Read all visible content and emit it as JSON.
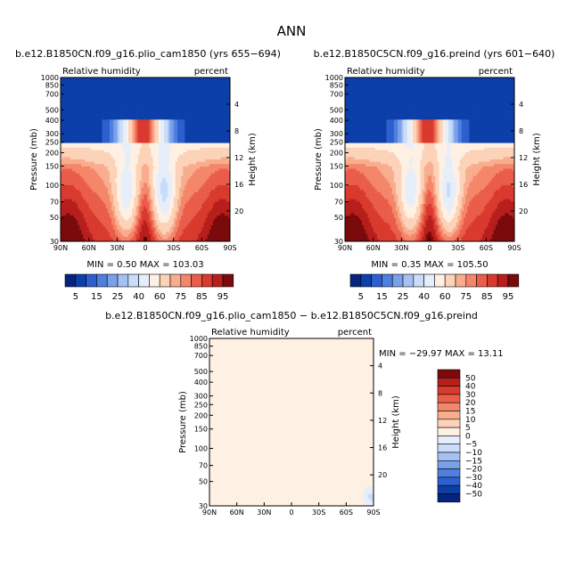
{
  "page_title": "ANN",
  "shading": {
    "levels": [
      5,
      10,
      15,
      20,
      25,
      30,
      40,
      50,
      60,
      70,
      75,
      80,
      85,
      90,
      95
    ],
    "colors": [
      "#06247f",
      "#0d3fa9",
      "#2d5fce",
      "#4f7fe0",
      "#7ba0ea",
      "#a5c0f1",
      "#c9dcf8",
      "#e6eefb",
      "#fff0e4",
      "#fcd2b8",
      "#f8ae8e",
      "#f4866a",
      "#ea5d4a",
      "#d93a2e",
      "#b71e1c",
      "#7a0a0c"
    ],
    "label_values": [
      "5",
      "15",
      "25",
      "40",
      "60",
      "75",
      "85",
      "95"
    ],
    "diff_levels": [
      -50,
      -40,
      -30,
      -20,
      -15,
      -10,
      -5,
      0,
      5,
      10,
      15,
      20,
      30,
      40,
      50
    ],
    "diff_label_values": [
      "50",
      "40",
      "30",
      "20",
      "15",
      "10",
      "5",
      "0",
      "−5",
      "−10",
      "−15",
      "−20",
      "−30",
      "−40",
      "−50"
    ]
  },
  "common": {
    "field_label": "Relative humidity",
    "units_label": "percent",
    "ylabel_left": "Pressure (mb)",
    "ylabel_right": "Height (km)",
    "xtick_labels": [
      "90N",
      "60N",
      "30N",
      "0",
      "30S",
      "60S",
      "90S"
    ],
    "pressure_ticks": [
      "30",
      "50",
      "70",
      "100",
      "150",
      "200",
      "250",
      "300",
      "400",
      "500",
      "700",
      "850",
      "1000"
    ],
    "left_ticks_shown": [
      "30",
      "50",
      "70",
      "100",
      "150",
      "200",
      "250",
      "300",
      "400",
      "500",
      "700",
      "850",
      "1000"
    ],
    "height_ticks": [
      "20",
      "16",
      "12",
      "8",
      "4"
    ]
  },
  "panels": {
    "top_left": {
      "title": "b.e12.B1850CN.f09_g16.plio_cam1850 (yrs 655−694)",
      "stats": "MIN =    0.50   MAX = 103.03"
    },
    "top_right": {
      "title": "b.e12.B1850C5CN.f09_g16.preind (yrs 601−640)",
      "stats": "MIN =    0.35   MAX = 105.50"
    },
    "bottom": {
      "title": "b.e12.B1850CN.f09_g16.plio_cam1850 − b.e12.B1850C5CN.f09_g16.preind",
      "stats": "MIN = −29.97   MAX =   13.11"
    }
  },
  "chart_data": [
    {
      "type": "heatmap",
      "title": "b.e12.B1850CN.f09_g16.plio_cam1850 (yrs 655−694)",
      "variable": "Relative humidity",
      "units": "percent",
      "xlabel": "",
      "ylabel": "Pressure (mb)",
      "ylabel_right": "Height (km)",
      "x": [
        "90N",
        "60N",
        "30N",
        "0",
        "30S",
        "60S",
        "90S"
      ],
      "y_pressure_mb": [
        30,
        50,
        70,
        100,
        150,
        200,
        250,
        300,
        400,
        500,
        700,
        850,
        1000
      ],
      "ylim": [
        1000,
        30
      ],
      "min": 0.5,
      "max": 103.03,
      "contour_levels": [
        5,
        10,
        15,
        20,
        25,
        30,
        40,
        50,
        60,
        70,
        75,
        80,
        85,
        90,
        95
      ]
    },
    {
      "type": "heatmap",
      "title": "b.e12.B1850C5CN.f09_g16.preind (yrs 601−640)",
      "variable": "Relative humidity",
      "units": "percent",
      "xlabel": "",
      "ylabel": "Pressure (mb)",
      "ylabel_right": "Height (km)",
      "x": [
        "90N",
        "60N",
        "30N",
        "0",
        "30S",
        "60S",
        "90S"
      ],
      "y_pressure_mb": [
        30,
        50,
        70,
        100,
        150,
        200,
        250,
        300,
        400,
        500,
        700,
        850,
        1000
      ],
      "ylim": [
        1000,
        30
      ],
      "min": 0.35,
      "max": 105.5,
      "contour_levels": [
        5,
        10,
        15,
        20,
        25,
        30,
        40,
        50,
        60,
        70,
        75,
        80,
        85,
        90,
        95
      ]
    },
    {
      "type": "heatmap",
      "title": "b.e12.B1850CN.f09_g16.plio_cam1850 − b.e12.B1850C5CN.f09_g16.preind",
      "variable": "Relative humidity",
      "units": "percent",
      "xlabel": "",
      "ylabel": "Pressure (mb)",
      "ylabel_right": "Height (km)",
      "x": [
        "90N",
        "60N",
        "30N",
        "0",
        "30S",
        "60S",
        "90S"
      ],
      "y_pressure_mb": [
        30,
        50,
        70,
        100,
        150,
        200,
        250,
        300,
        400,
        500,
        700,
        850,
        1000
      ],
      "ylim": [
        1000,
        30
      ],
      "min": -29.97,
      "max": 13.11,
      "contour_levels": [
        -50,
        -40,
        -30,
        -20,
        -15,
        -10,
        -5,
        0,
        5,
        10,
        15,
        20,
        30,
        40,
        50
      ]
    }
  ]
}
